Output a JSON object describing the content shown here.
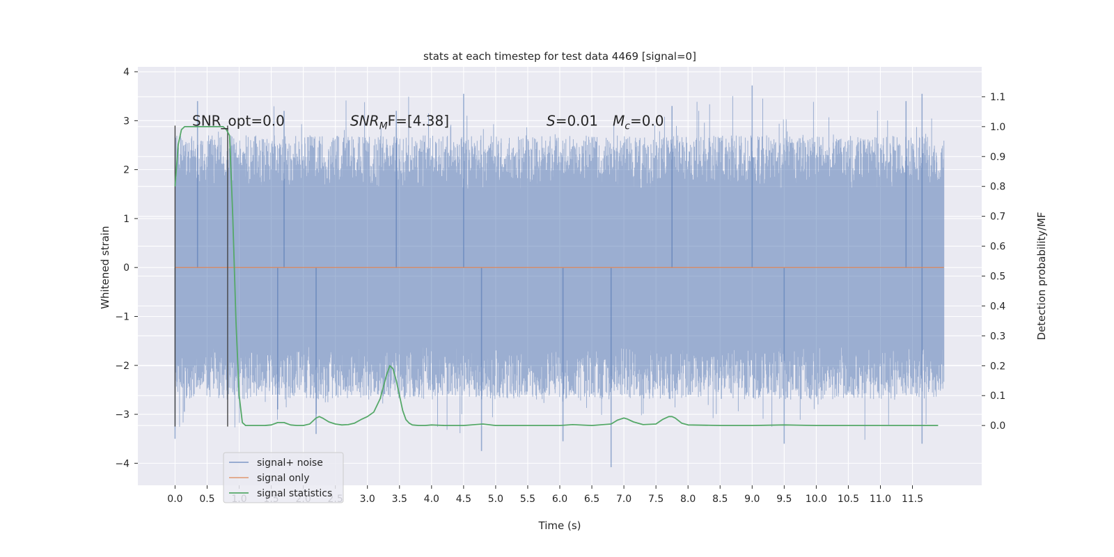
{
  "chart_data": {
    "type": "line",
    "title": "stats at each timestep for test data 4469 [signal=0]",
    "xlabel": "Time (s)",
    "ylabel_left": "Whitened strain",
    "ylabel_right": "Detection probability/MF",
    "xlim": [
      -0.58,
      12.58
    ],
    "ylim_left": [
      -4.45,
      4.1
    ],
    "ylim_right": [
      -0.2,
      1.2
    ],
    "x_ticks": [
      "0.0",
      "0.5",
      "1.0",
      "1.5",
      "2.0",
      "2.5",
      "3.0",
      "3.5",
      "4.0",
      "4.5",
      "5.0",
      "5.5",
      "6.0",
      "6.5",
      "7.0",
      "7.5",
      "8.0",
      "8.5",
      "9.0",
      "9.5",
      "10.0",
      "10.5",
      "11.0",
      "11.5"
    ],
    "y_left_ticks": [
      "4",
      "3",
      "2",
      "1",
      "0",
      "−1",
      "−2",
      "−3",
      "−4"
    ],
    "y_right_ticks": [
      "1.1",
      "1.0",
      "0.9",
      "0.8",
      "0.7",
      "0.6",
      "0.5",
      "0.4",
      "0.3",
      "0.2",
      "0.1",
      "0.0"
    ],
    "grid": true,
    "legend_position": "lower-left",
    "background_color": "#eaeaf2",
    "annotations": [
      {
        "lead": "SNR_opt=0.0"
      },
      {
        "sym": "SNR",
        "sub": "M",
        "post": "F=[4.38]"
      },
      {
        "sym": "S",
        "post": "=0.01"
      },
      {
        "sym": "M",
        "sub": "c",
        "post": "=0.0"
      }
    ],
    "marker_lines_x": [
      0.0,
      0.82
    ],
    "series": [
      {
        "name": "signal+ noise",
        "color": "#4c72b0",
        "opacity": 0.5,
        "x_range": [
          0.0,
          11.99
        ],
        "envelope": {
          "typical_abs": 1.6,
          "upper_peaks_max": 3.72,
          "lower_peaks_min": -4.08
        },
        "peaks": [
          {
            "x": 0.0,
            "y": -3.5
          },
          {
            "x": 0.35,
            "y": 3.4
          },
          {
            "x": 1.6,
            "y": -2.9
          },
          {
            "x": 1.7,
            "y": 3.2
          },
          {
            "x": 2.2,
            "y": -3.4
          },
          {
            "x": 3.45,
            "y": 3.2
          },
          {
            "x": 4.5,
            "y": 3.55
          },
          {
            "x": 4.78,
            "y": -3.75
          },
          {
            "x": 6.05,
            "y": -3.55
          },
          {
            "x": 6.8,
            "y": -4.08
          },
          {
            "x": 7.75,
            "y": 3.3
          },
          {
            "x": 9.0,
            "y": 3.72
          },
          {
            "x": 9.5,
            "y": -3.6
          },
          {
            "x": 11.4,
            "y": 3.4
          },
          {
            "x": 11.65,
            "y": 3.55
          },
          {
            "x": 11.65,
            "y": -3.6
          }
        ]
      },
      {
        "name": "signal only",
        "color": "#dd8452",
        "x": [
          0.0,
          11.99
        ],
        "y": [
          0.0,
          0.0
        ]
      },
      {
        "name": "signal statistics",
        "color": "#55a868",
        "axis": "right",
        "x": [
          0.0,
          0.05,
          0.1,
          0.15,
          0.2,
          0.3,
          0.4,
          0.5,
          0.6,
          0.7,
          0.75,
          0.8,
          0.85,
          0.9,
          0.95,
          1.0,
          1.05,
          1.1,
          1.2,
          1.3,
          1.4,
          1.5,
          1.6,
          1.7,
          1.8,
          1.9,
          2.0,
          2.1,
          2.2,
          2.25,
          2.3,
          2.4,
          2.5,
          2.6,
          2.7,
          2.8,
          2.9,
          3.0,
          3.1,
          3.2,
          3.25,
          3.3,
          3.35,
          3.4,
          3.45,
          3.5,
          3.55,
          3.6,
          3.65,
          3.7,
          3.8,
          3.9,
          4.0,
          4.2,
          4.5,
          4.8,
          5.0,
          5.5,
          6.0,
          6.2,
          6.5,
          6.8,
          6.9,
          7.0,
          7.05,
          7.15,
          7.3,
          7.5,
          7.6,
          7.7,
          7.75,
          7.8,
          7.9,
          8.0,
          8.5,
          9.0,
          9.5,
          10.0,
          11.0,
          11.9
        ],
        "y": [
          0.8,
          0.94,
          0.99,
          1.0,
          1.0,
          1.0,
          1.0,
          1.0,
          1.0,
          1.0,
          1.0,
          0.99,
          0.97,
          0.7,
          0.35,
          0.1,
          0.01,
          0.0,
          0.0,
          0.0,
          0.0,
          0.002,
          0.01,
          0.01,
          0.002,
          0.0,
          0.0,
          0.005,
          0.025,
          0.03,
          0.025,
          0.012,
          0.005,
          0.002,
          0.003,
          0.008,
          0.02,
          0.03,
          0.045,
          0.09,
          0.13,
          0.17,
          0.2,
          0.19,
          0.15,
          0.1,
          0.05,
          0.02,
          0.008,
          0.002,
          0.0,
          0.0,
          0.002,
          0.0,
          0.0,
          0.005,
          0.0,
          0.0,
          0.0,
          0.003,
          0.0,
          0.005,
          0.018,
          0.025,
          0.022,
          0.012,
          0.003,
          0.005,
          0.02,
          0.03,
          0.03,
          0.025,
          0.008,
          0.002,
          0.0,
          0.0,
          0.002,
          0.0,
          0.0,
          0.0
        ]
      }
    ]
  }
}
